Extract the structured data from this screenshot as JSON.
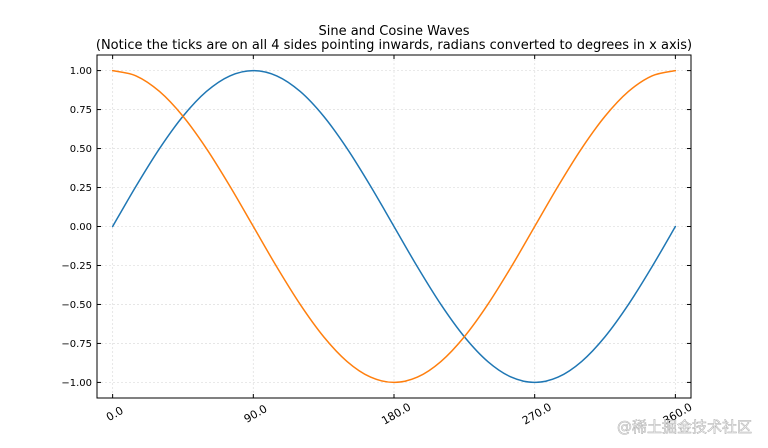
{
  "chart_data": {
    "type": "line",
    "title": "Sine and Cosine Waves",
    "subtitle": "(Notice the ticks are on all 4 sides pointing inwards, radians converted to degrees in x axis)",
    "xlabel": "",
    "ylabel": "",
    "xlim": [
      -10,
      370
    ],
    "ylim": [
      -1.1,
      1.1
    ],
    "x_ticks": [
      0,
      90,
      180,
      270,
      360
    ],
    "x_tick_labels": [
      "0.0",
      "90.0",
      "180.0",
      "270.0",
      "360.0"
    ],
    "x_tick_rotation_deg": 30,
    "y_ticks": [
      1.0,
      0.75,
      0.5,
      0.25,
      0.0,
      -0.25,
      -0.5,
      -0.75,
      -1.0
    ],
    "y_tick_labels": [
      "1.00",
      "0.75",
      "0.50",
      "0.25",
      "0.00",
      "−0.25",
      "−0.50",
      "−0.75",
      "−1.00"
    ],
    "grid": true,
    "ticks_direction": "in",
    "ticks_on_all_sides": true,
    "x": [
      0,
      15,
      30,
      45,
      60,
      75,
      90,
      105,
      120,
      135,
      150,
      165,
      180,
      195,
      210,
      225,
      240,
      255,
      270,
      285,
      300,
      315,
      330,
      345,
      360
    ],
    "series": [
      {
        "values": [
          0.0,
          0.259,
          0.5,
          0.707,
          0.866,
          0.966,
          1.0,
          0.966,
          0.866,
          0.707,
          0.5,
          0.259,
          0.0,
          -0.259,
          -0.5,
          -0.707,
          -0.866,
          -0.966,
          -1.0,
          -0.966,
          -0.866,
          -0.707,
          -0.5,
          -0.259,
          0.0
        ],
        "color": "#1f77b4"
      },
      {
        "values": [
          1.0,
          0.966,
          0.866,
          0.707,
          0.5,
          0.259,
          0.0,
          -0.259,
          -0.5,
          -0.707,
          -0.866,
          -0.966,
          -1.0,
          -0.966,
          -0.866,
          -0.707,
          -0.5,
          -0.259,
          0.0,
          0.259,
          0.5,
          0.707,
          0.866,
          0.966,
          1.0
        ],
        "color": "#ff7f0e"
      }
    ]
  },
  "watermark": "@稀土掘金技术社区"
}
